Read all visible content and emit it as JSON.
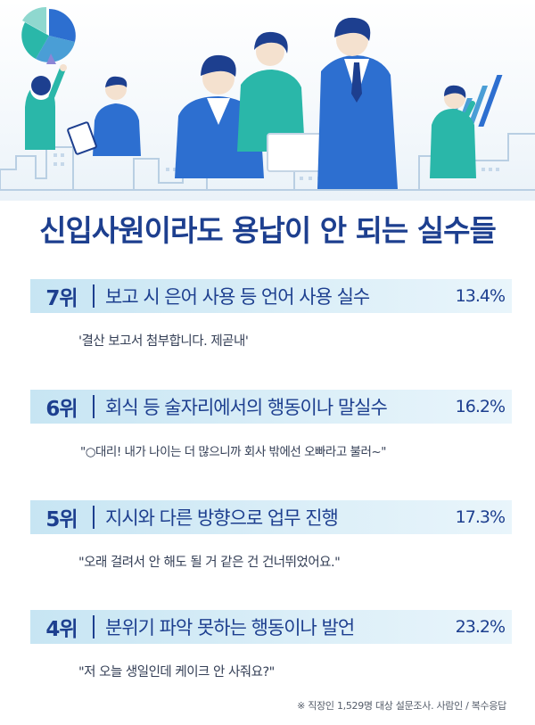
{
  "title": "신입사원이라도 용납이 안 되는 실수들",
  "items": [
    {
      "rank": "7위",
      "label": "보고 시 은어 사용 등 언어 사용 실수",
      "pct": "13.4%",
      "quote": "'결산 보고서 첨부합니다. 제곧내'"
    },
    {
      "rank": "6위",
      "label": "회식 등 술자리에서의 행동이나 말실수",
      "pct": "16.2%",
      "quote": "\"○대리! 내가 나이는 더 많으니까 회사 밖에선 오빠라고 불러~\""
    },
    {
      "rank": "5위",
      "label": "지시와 다른 방향으로 업무 진행",
      "pct": "17.3%",
      "quote": "\"오래 걸려서 안 해도 될 거 같은 건 건너뛰었어요.\""
    },
    {
      "rank": "4위",
      "label": "분위기 파악 못하는 행동이나 발언",
      "pct": "23.2%",
      "quote": "\"저 오늘 생일인데 케이크 안 사줘요?\""
    }
  ],
  "footnote": "※ 직장인 1,529명 대상 설문조사. 사람인 / 복수응답",
  "colors": {
    "accent": "#1d3f8f",
    "bar": "#c7e5f3",
    "illustration": "#2d6fd0",
    "teal": "#2ab7a9"
  }
}
